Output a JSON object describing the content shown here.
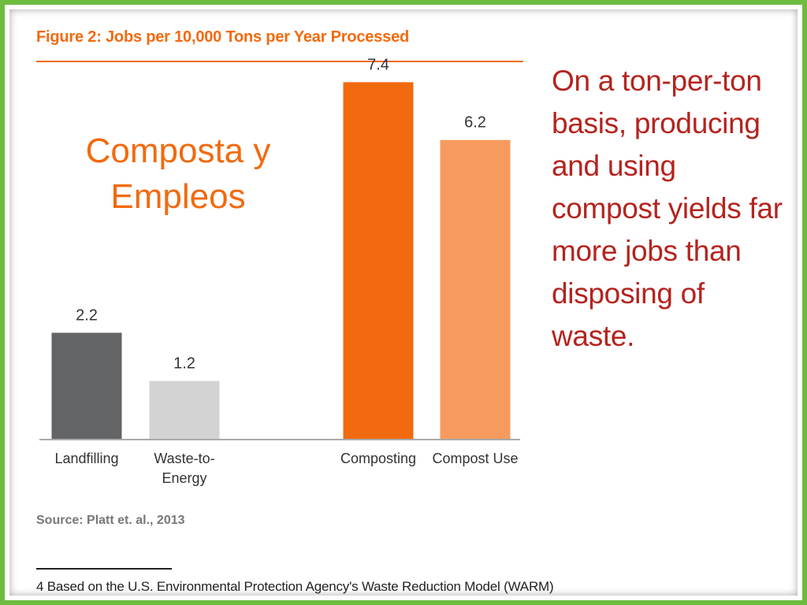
{
  "slide": {
    "figure_title": "Figure 2: Jobs per 10,000 Tons per Year Processed",
    "overlay_title": "Composta y Empleos",
    "side_text": "On a ton-per-ton basis, producing and using compost yields far more jobs than disposing of waste.",
    "source": "Source: Platt et. al., 2013",
    "footnote": "4 Based on the U.S. Environmental Protection Agency's Waste Reduction Model (WARM)"
  },
  "colors": {
    "frame": "#6dbb3f",
    "accent": "#f26a0f",
    "side_text": "#b5231e"
  },
  "chart_data": {
    "type": "bar",
    "title": "Figure 2: Jobs per 10,000 Tons per Year Processed",
    "xlabel": "",
    "ylabel": "",
    "ylim": [
      0,
      8
    ],
    "grid": false,
    "categories": [
      "Landfilling",
      "Waste-to-Energy",
      "Composting",
      "Compost Use"
    ],
    "category_lines": [
      [
        "Landfilling"
      ],
      [
        "Waste-to-",
        "Energy"
      ],
      [
        "Composting"
      ],
      [
        "Compost Use"
      ]
    ],
    "values": [
      2.2,
      1.2,
      7.4,
      6.2
    ],
    "value_labels": [
      "2.2",
      "1.2",
      "7.4",
      "6.2"
    ],
    "bar_colors": [
      "#636466",
      "#d3d3d3",
      "#f26a0f",
      "#f79a5e"
    ]
  }
}
